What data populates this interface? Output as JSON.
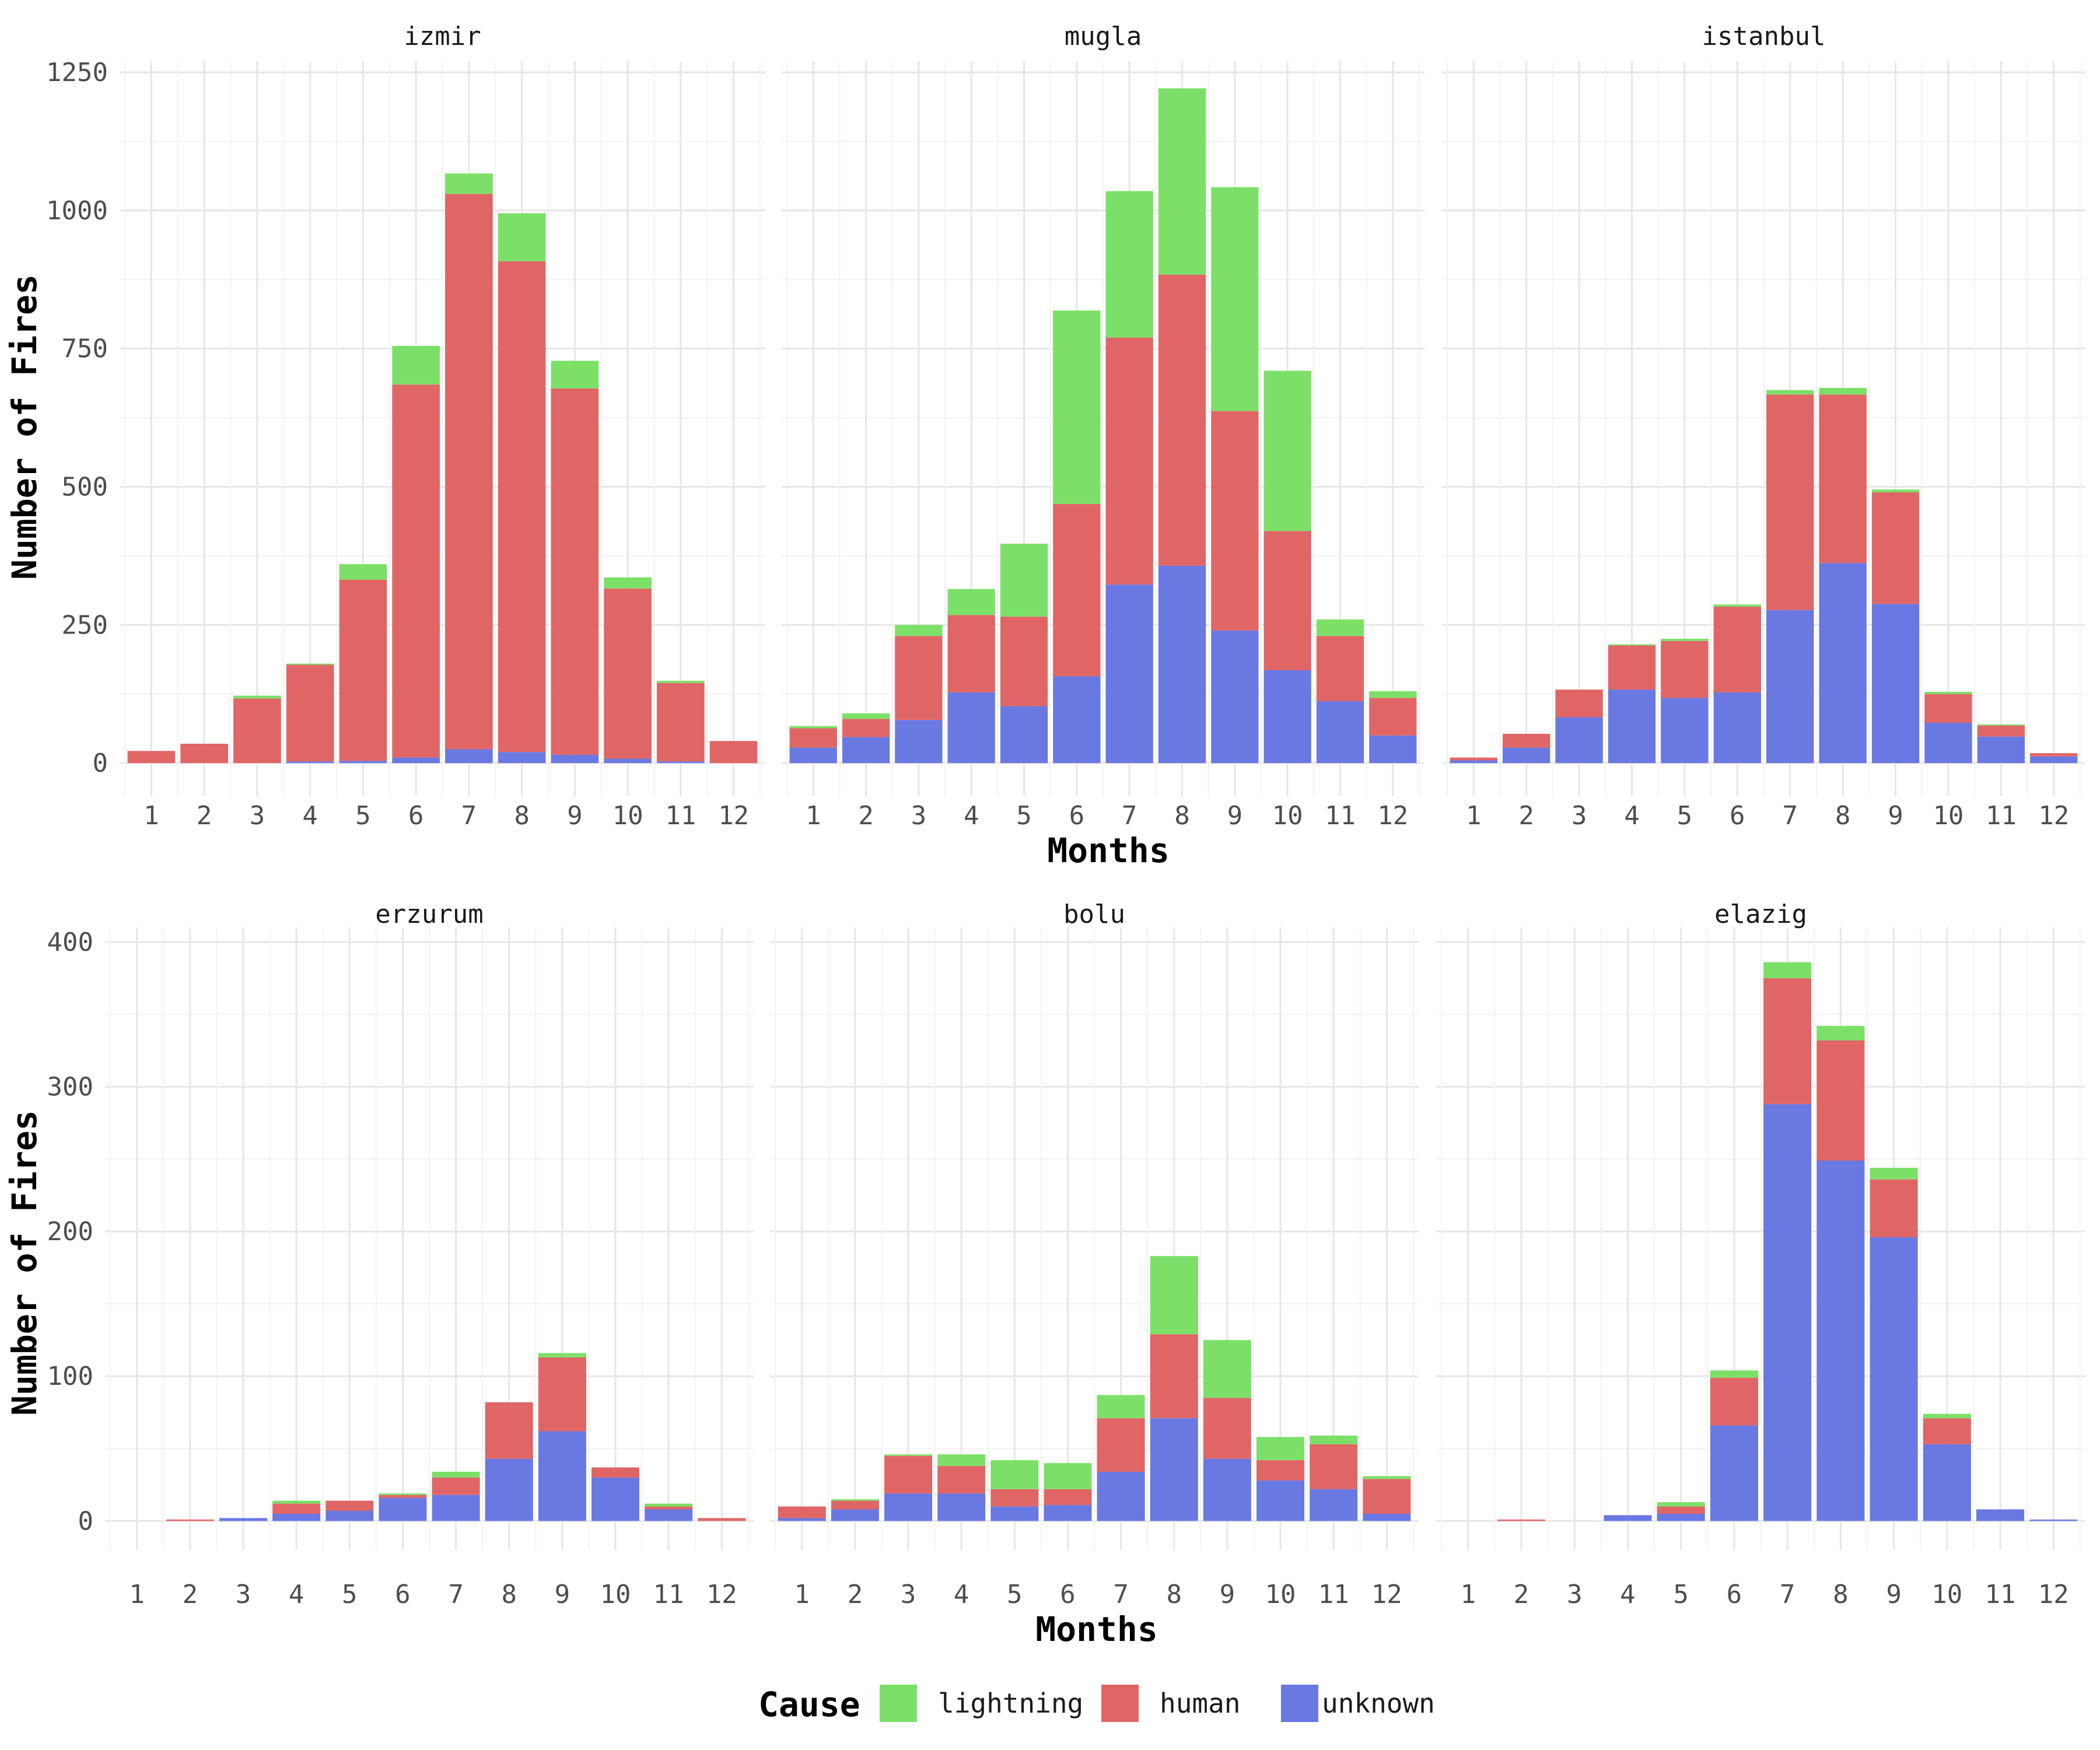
{
  "chart_data": {
    "type": "bar",
    "stacked": true,
    "facet_rows": 2,
    "facet_cols": 3,
    "free_y_per_row": true,
    "xlabel": "Months",
    "ylabel": "Number of Fires",
    "categories": [
      "1",
      "2",
      "3",
      "4",
      "5",
      "6",
      "7",
      "8",
      "9",
      "10",
      "11",
      "12"
    ],
    "legend": {
      "title": "Cause",
      "position": "bottom",
      "items": [
        {
          "name": "lightning",
          "color": "#7CE068"
        },
        {
          "name": "human",
          "color": "#E06666"
        },
        {
          "name": "unknown",
          "color": "#6A78E2"
        }
      ]
    },
    "grid": true,
    "rows": [
      {
        "ylim": [
          -60,
          1270
        ],
        "yticks": [
          0,
          250,
          500,
          750,
          1000,
          1250
        ]
      },
      {
        "ylim": [
          -20,
          410
        ],
        "yticks": [
          0,
          100,
          200,
          300,
          400
        ]
      }
    ],
    "panels": [
      {
        "title": "izmir",
        "row": 0,
        "col": 0,
        "series": [
          {
            "name": "unknown",
            "values": [
              0,
              0,
              0,
              3,
              4,
              10,
              25,
              20,
              15,
              8,
              3,
              0
            ]
          },
          {
            "name": "human",
            "values": [
              22,
              35,
              117,
              175,
              328,
              675,
              1005,
              888,
              663,
              308,
              142,
              40
            ]
          },
          {
            "name": "lightning",
            "values": [
              0,
              0,
              5,
              2,
              28,
              70,
              37,
              87,
              50,
              20,
              4,
              0
            ]
          }
        ]
      },
      {
        "title": "mugla",
        "row": 0,
        "col": 1,
        "series": [
          {
            "name": "unknown",
            "values": [
              28,
              47,
              78,
              128,
              103,
              157,
              323,
              357,
              240,
              168,
              112,
              50
            ]
          },
          {
            "name": "human",
            "values": [
              35,
              33,
              152,
              140,
              162,
              312,
              447,
              527,
              397,
              252,
              118,
              68
            ]
          },
          {
            "name": "lightning",
            "values": [
              4,
              10,
              20,
              47,
              132,
              350,
              265,
              337,
              405,
              290,
              30,
              12
            ]
          }
        ]
      },
      {
        "title": "istanbul",
        "row": 0,
        "col": 2,
        "series": [
          {
            "name": "unknown",
            "values": [
              5,
              28,
              83,
              133,
              118,
              128,
              277,
              362,
              288,
              73,
              48,
              12
            ]
          },
          {
            "name": "human",
            "values": [
              5,
              25,
              50,
              80,
              103,
              155,
              390,
              305,
              202,
              52,
              20,
              6
            ]
          },
          {
            "name": "lightning",
            "values": [
              0,
              0,
              0,
              2,
              4,
              4,
              8,
              12,
              5,
              4,
              2,
              0
            ]
          }
        ]
      },
      {
        "title": "erzurum",
        "row": 1,
        "col": 0,
        "series": [
          {
            "name": "unknown",
            "values": [
              0,
              0,
              2,
              5,
              7,
              16,
              18,
              43,
              62,
              30,
              8,
              0
            ]
          },
          {
            "name": "human",
            "values": [
              0,
              1,
              0,
              7,
              7,
              2,
              12,
              39,
              51,
              7,
              2,
              2
            ]
          },
          {
            "name": "lightning",
            "values": [
              0,
              0,
              0,
              2,
              0,
              1,
              4,
              0,
              3,
              0,
              2,
              0
            ]
          }
        ]
      },
      {
        "title": "bolu",
        "row": 1,
        "col": 1,
        "series": [
          {
            "name": "unknown",
            "values": [
              2,
              8,
              19,
              19,
              10,
              11,
              34,
              71,
              43,
              28,
              22,
              5
            ]
          },
          {
            "name": "human",
            "values": [
              8,
              6,
              26,
              19,
              12,
              11,
              37,
              58,
              42,
              14,
              31,
              24
            ]
          },
          {
            "name": "lightning",
            "values": [
              0,
              1,
              1,
              8,
              20,
              18,
              16,
              54,
              40,
              16,
              6,
              2
            ]
          }
        ]
      },
      {
        "title": "elazig",
        "row": 1,
        "col": 2,
        "series": [
          {
            "name": "unknown",
            "values": [
              0,
              0,
              0,
              4,
              5,
              66,
              288,
              249,
              196,
              53,
              8,
              1
            ]
          },
          {
            "name": "human",
            "values": [
              0,
              1,
              0,
              0,
              5,
              33,
              87,
              83,
              40,
              18,
              0,
              0
            ]
          },
          {
            "name": "lightning",
            "values": [
              0,
              0,
              0,
              0,
              3,
              5,
              11,
              10,
              8,
              3,
              0,
              0
            ]
          }
        ]
      }
    ]
  }
}
